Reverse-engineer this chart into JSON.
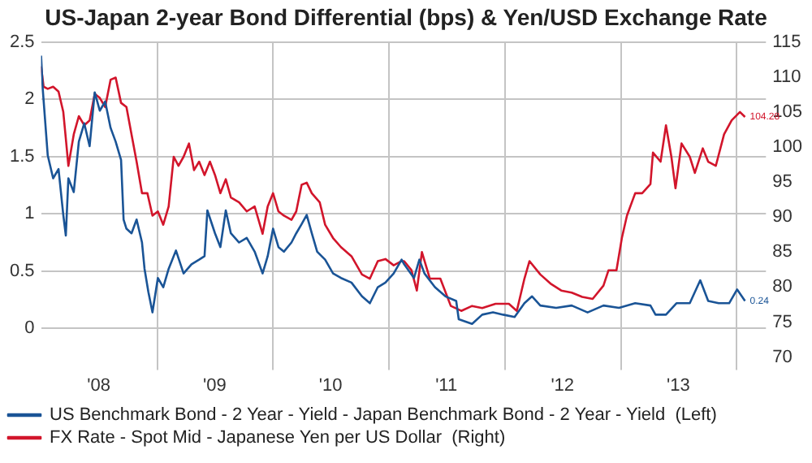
{
  "chart_data": {
    "type": "line",
    "title": "US-Japan 2-year Bond Differential (bps) & Yen/USD Exchange Rate",
    "xlim": [
      "2008-01-01",
      "2014-04-03"
    ],
    "xticks": [
      {
        "value": "2008-07-01",
        "label": "'08"
      },
      {
        "value": "2009-01-01",
        "label": null
      },
      {
        "value": "2009-07-01",
        "label": "'09"
      },
      {
        "value": "2010-01-01",
        "label": null
      },
      {
        "value": "2010-07-01",
        "label": "'10"
      },
      {
        "value": "2011-01-01",
        "label": null
      },
      {
        "value": "2011-07-01",
        "label": "'11"
      },
      {
        "value": "2012-01-01",
        "label": null
      },
      {
        "value": "2012-07-01",
        "label": "'12"
      },
      {
        "value": "2013-01-01",
        "label": null
      },
      {
        "value": "2013-07-01",
        "label": "'13"
      },
      {
        "value": "2014-01-01",
        "label": null
      }
    ],
    "ylim": [
      -0.25,
      2.5
    ],
    "yticks": [
      0,
      0.5,
      1,
      1.5,
      2,
      2.5
    ],
    "y2lim": [
      70,
      115
    ],
    "y2ticks": [
      70,
      75,
      80,
      85,
      90,
      95,
      100,
      105,
      110,
      115
    ],
    "grid": true,
    "legend": "bottom",
    "marker": "none",
    "line_style": "solid",
    "annotations": [
      "0.24",
      "104.28"
    ],
    "series": [
      {
        "name": "US Benchmark Bond - 2 Year - Yield - Japan Benchmark Bond - 2 Year - Yield  (Left)",
        "color": "#1a5496",
        "axis": "y",
        "x": [
          "2008-01-01",
          "2008-01-06",
          "2008-01-22",
          "2008-02-08",
          "2008-02-25",
          "2008-03-11",
          "2008-03-19",
          "2008-03-27",
          "2008-04-13",
          "2008-04-29",
          "2008-05-16",
          "2008-06-02",
          "2008-06-18",
          "2008-07-04",
          "2008-07-21",
          "2008-08-07",
          "2008-08-23",
          "2008-09-09",
          "2008-09-17",
          "2008-09-26",
          "2008-10-12",
          "2008-10-28",
          "2008-11-14",
          "2008-11-22",
          "2008-12-04",
          "2008-12-17",
          "2009-01-03",
          "2009-01-20",
          "2009-02-06",
          "2009-03-01",
          "2009-03-25",
          "2009-04-19",
          "2009-05-13",
          "2009-05-30",
          "2009-06-08",
          "2009-07-02",
          "2009-07-19",
          "2009-08-05",
          "2009-08-21",
          "2009-09-16",
          "2009-10-10",
          "2009-11-04",
          "2009-11-29",
          "2009-12-15",
          "2010-01-01",
          "2010-01-18",
          "2010-02-04",
          "2010-02-28",
          "2010-03-15",
          "2010-04-01",
          "2010-04-17",
          "2010-05-03",
          "2010-05-20",
          "2010-06-14",
          "2010-07-09",
          "2010-08-03",
          "2010-09-05",
          "2010-10-08",
          "2010-11-02",
          "2010-11-27",
          "2010-12-21",
          "2011-01-16",
          "2011-02-10",
          "2011-02-18",
          "2011-03-21",
          "2011-04-07",
          "2011-04-23",
          "2011-05-26",
          "2011-06-28",
          "2011-08-01",
          "2011-08-09",
          "2011-09-20",
          "2011-10-22",
          "2011-11-25",
          "2011-12-27",
          "2012-02-01",
          "2012-03-03",
          "2012-03-27",
          "2012-04-22",
          "2012-06-11",
          "2012-07-30",
          "2012-09-18",
          "2012-11-07",
          "2012-12-26",
          "2013-02-15",
          "2013-04-04",
          "2013-04-20",
          "2013-05-23",
          "2013-06-25",
          "2013-08-06",
          "2013-09-08",
          "2013-10-03",
          "2013-11-05",
          "2013-12-08",
          "2014-01-02",
          "2014-01-27"
        ],
        "values": [
          2.38,
          2.1,
          1.51,
          1.31,
          1.39,
          0.99,
          0.81,
          1.31,
          1.19,
          1.63,
          1.79,
          1.59,
          2.06,
          1.9,
          1.98,
          1.75,
          1.63,
          1.47,
          0.95,
          0.87,
          0.83,
          0.95,
          0.75,
          0.52,
          0.32,
          0.14,
          0.44,
          0.36,
          0.52,
          0.68,
          0.48,
          0.56,
          0.6,
          0.63,
          1.03,
          0.83,
          0.71,
          1.03,
          0.83,
          0.75,
          0.79,
          0.67,
          0.48,
          0.63,
          0.87,
          0.71,
          0.67,
          0.75,
          0.83,
          0.91,
          0.99,
          0.83,
          0.67,
          0.6,
          0.48,
          0.44,
          0.4,
          0.28,
          0.22,
          0.36,
          0.4,
          0.48,
          0.6,
          0.56,
          0.44,
          0.6,
          0.48,
          0.36,
          0.28,
          0.24,
          0.08,
          0.04,
          0.12,
          0.14,
          0.12,
          0.1,
          0.22,
          0.28,
          0.2,
          0.18,
          0.2,
          0.14,
          0.2,
          0.18,
          0.22,
          0.2,
          0.12,
          0.12,
          0.22,
          0.22,
          0.42,
          0.24,
          0.22,
          0.22,
          0.34,
          0.24
        ]
      },
      {
        "name": "FX Rate - Spot Mid - Japanese Yen per US Dollar  (Right)",
        "color": "#d2152b",
        "axis": "y2",
        "x": [
          "2008-01-01",
          "2008-01-09",
          "2008-01-22",
          "2008-02-08",
          "2008-02-25",
          "2008-03-11",
          "2008-03-19",
          "2008-03-27",
          "2008-04-13",
          "2008-04-29",
          "2008-05-16",
          "2008-06-02",
          "2008-06-18",
          "2008-07-04",
          "2008-07-21",
          "2008-08-07",
          "2008-08-23",
          "2008-09-09",
          "2008-09-26",
          "2008-10-12",
          "2008-10-28",
          "2008-11-14",
          "2008-12-01",
          "2008-12-17",
          "2009-01-03",
          "2009-01-20",
          "2009-02-06",
          "2009-02-22",
          "2009-03-09",
          "2009-03-25",
          "2009-04-11",
          "2009-04-27",
          "2009-05-13",
          "2009-05-30",
          "2009-06-16",
          "2009-07-02",
          "2009-07-19",
          "2009-08-05",
          "2009-08-21",
          "2009-09-16",
          "2009-10-10",
          "2009-11-04",
          "2009-11-29",
          "2009-12-15",
          "2010-01-01",
          "2010-01-18",
          "2010-02-04",
          "2010-02-28",
          "2010-03-15",
          "2010-04-01",
          "2010-04-17",
          "2010-05-03",
          "2010-05-28",
          "2010-06-14",
          "2010-07-09",
          "2010-08-03",
          "2010-09-05",
          "2010-10-08",
          "2010-11-02",
          "2010-11-27",
          "2010-12-21",
          "2011-01-16",
          "2011-02-10",
          "2011-02-18",
          "2011-03-13",
          "2011-03-30",
          "2011-04-15",
          "2011-05-10",
          "2011-06-12",
          "2011-07-15",
          "2011-08-17",
          "2011-09-20",
          "2011-10-22",
          "2011-12-03",
          "2012-01-14",
          "2012-02-08",
          "2012-03-03",
          "2012-03-19",
          "2012-04-22",
          "2012-05-24",
          "2012-06-27",
          "2012-07-30",
          "2012-09-01",
          "2012-10-04",
          "2012-11-07",
          "2012-11-23",
          "2012-12-18",
          "2013-01-04",
          "2013-01-20",
          "2013-02-15",
          "2013-03-09",
          "2013-04-04",
          "2013-04-12",
          "2013-05-06",
          "2013-05-23",
          "2013-06-09",
          "2013-06-22",
          "2013-07-11",
          "2013-08-06",
          "2013-08-22",
          "2013-09-16",
          "2013-10-03",
          "2013-10-27",
          "2013-11-22",
          "2013-12-16",
          "2014-01-11",
          "2014-01-27"
        ],
        "values": [
          111.5,
          108.6,
          108.3,
          108.6,
          107.9,
          105.0,
          101.2,
          97.3,
          101.8,
          104.4,
          103.1,
          103.8,
          107.6,
          107.0,
          105.7,
          109.6,
          109.9,
          106.3,
          105.7,
          101.8,
          97.9,
          93.4,
          93.4,
          90.2,
          90.8,
          88.9,
          91.5,
          98.6,
          97.3,
          98.6,
          100.5,
          96.7,
          97.9,
          96.0,
          97.9,
          96.0,
          93.4,
          95.4,
          92.8,
          92.1,
          90.8,
          91.5,
          87.6,
          91.5,
          93.4,
          90.8,
          90.2,
          89.6,
          90.8,
          94.6,
          94.9,
          93.4,
          92.1,
          88.9,
          87.0,
          85.7,
          84.4,
          81.8,
          81.2,
          83.7,
          84.0,
          83.1,
          83.7,
          83.7,
          82.4,
          79.5,
          85.0,
          81.2,
          81.2,
          77.3,
          76.6,
          77.3,
          77.0,
          77.6,
          77.6,
          76.6,
          81.2,
          83.7,
          81.8,
          80.5,
          79.5,
          79.2,
          78.6,
          78.3,
          80.2,
          82.4,
          82.4,
          87.0,
          90.2,
          93.4,
          93.4,
          94.7,
          99.2,
          97.9,
          103.1,
          98.6,
          94.1,
          100.5,
          98.6,
          96.3,
          99.8,
          97.9,
          97.3,
          101.8,
          103.8,
          105.0,
          104.28
        ]
      }
    ]
  }
}
